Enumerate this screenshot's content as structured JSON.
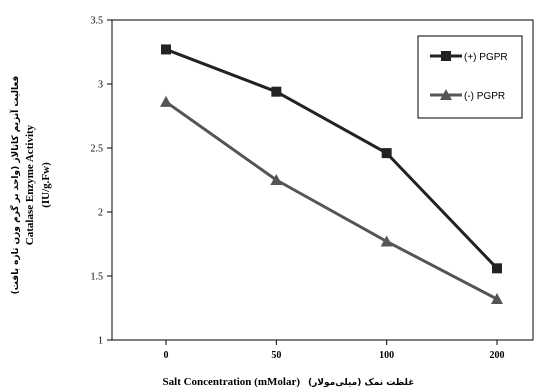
{
  "chart_data": {
    "type": "line",
    "categories": [
      "0",
      "50",
      "100",
      "200"
    ],
    "series": [
      {
        "name": "(+) PGPR",
        "marker": "square",
        "color": "#222222",
        "values": [
          3.27,
          2.94,
          2.46,
          1.56
        ]
      },
      {
        "name": "(-) PGPR",
        "marker": "triangle",
        "color": "#555555",
        "values": [
          2.86,
          2.25,
          1.77,
          1.32
        ]
      }
    ],
    "ylim": [
      1,
      3.5
    ],
    "yticks": [
      "1",
      "1.5",
      "2",
      "2.5",
      "3",
      "3.5"
    ],
    "xlabel": "Salt Concentration (mMolar)",
    "xlabel_fa": "غلظت نمک (میلی‌مولار)",
    "ylabel_lines": [
      "Catalase Enzyme Activity",
      "(IU/g.Fw)"
    ],
    "ylabel_fa": "فعالیت آنزیم کاتالاز (واحد بر گرم وزن تازه بافت)",
    "legend_position": "top-right",
    "grid": false
  }
}
